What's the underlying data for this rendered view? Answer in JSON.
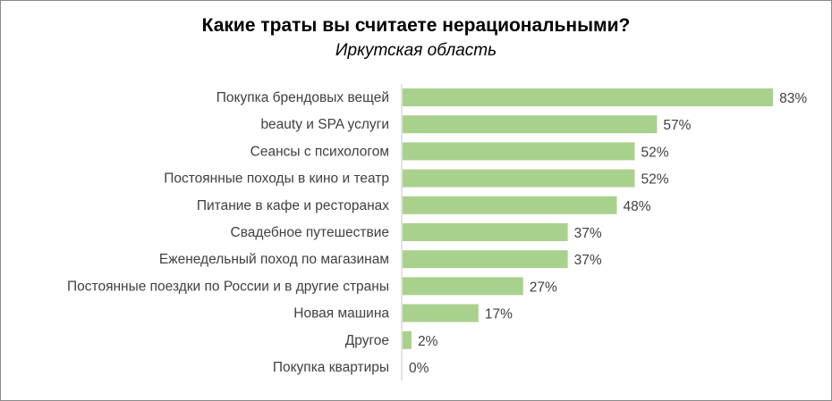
{
  "chart_data": {
    "type": "bar",
    "orientation": "horizontal",
    "title": "Какие траты вы считаете нерациональными?",
    "subtitle": "Иркутская область",
    "categories": [
      "Покупка брендовых вещей",
      "beauty и SPA услуги",
      "Сеансы с психологом",
      "Постоянные походы в кино и театр",
      "Питание в кафе и ресторанах",
      "Свадебное путешествие",
      "Еженедельный поход по магазинам",
      "Постоянные поездки по России и в другие страны",
      "Новая машина",
      "Другое",
      "Покупка квартиры"
    ],
    "values": [
      83,
      57,
      52,
      52,
      48,
      37,
      37,
      27,
      17,
      2,
      0
    ],
    "value_suffix": "%",
    "xlim": [
      0,
      100
    ],
    "bar_color": "#a9d18e",
    "grid": false,
    "legend": "none"
  }
}
